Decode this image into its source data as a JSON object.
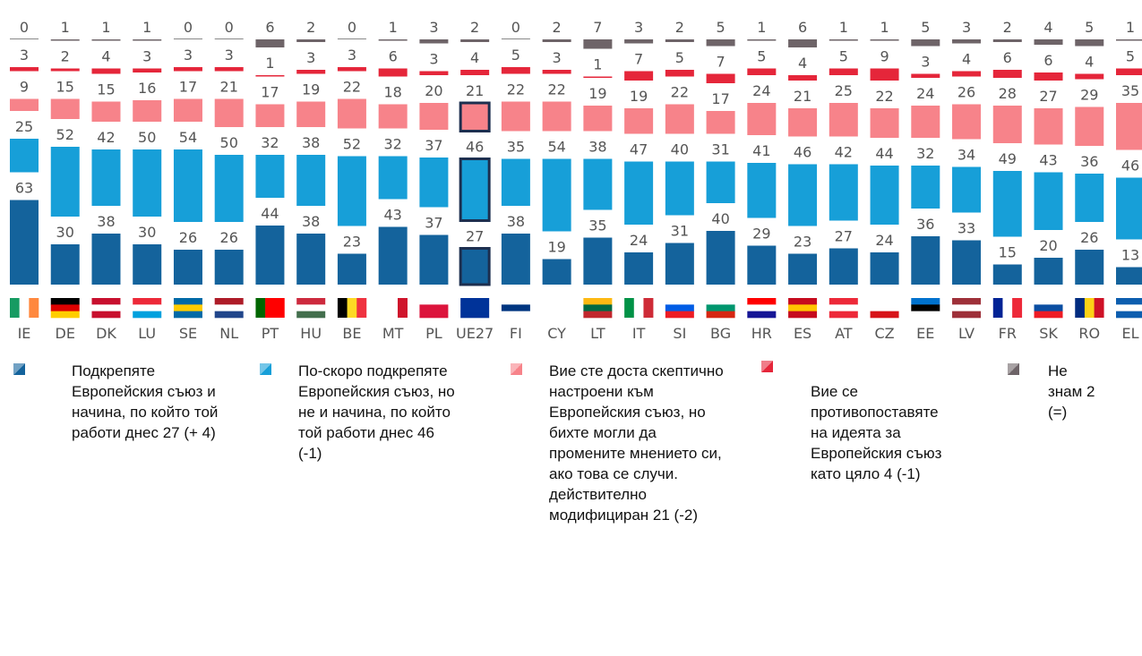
{
  "chart_data": {
    "type": "stacked-bar",
    "categories": [
      "IE",
      "DE",
      "DK",
      "LU",
      "SE",
      "NL",
      "PT",
      "HU",
      "BE",
      "MT",
      "PL",
      "UE27",
      "FI",
      "CY",
      "LT",
      "IT",
      "SI",
      "BG",
      "HR",
      "ES",
      "AT",
      "CZ",
      "EE",
      "LV",
      "FR",
      "SK",
      "RO",
      "EL"
    ],
    "series": [
      {
        "name": "Подкрепяте Европейския съюз и начина, по който той работи днес 27 (+ 4)",
        "color": "#14639c",
        "values": [
          63,
          30,
          38,
          30,
          26,
          26,
          44,
          38,
          23,
          43,
          37,
          27,
          38,
          19,
          35,
          24,
          31,
          40,
          29,
          23,
          27,
          24,
          36,
          33,
          15,
          20,
          26,
          13
        ]
      },
      {
        "name": "По-скоро подкрепяте Европейския съюз, но не и начина, по който той работи днес 46 (-1)",
        "color": "#179fd8",
        "values": [
          25,
          52,
          42,
          50,
          54,
          50,
          32,
          38,
          52,
          32,
          37,
          46,
          35,
          54,
          38,
          47,
          40,
          31,
          41,
          46,
          42,
          44,
          32,
          34,
          49,
          43,
          36,
          46
        ]
      },
      {
        "name": "Вие сте доста скептично настроени към Европейския съюз, но бихте могли да промените мнението си, ако това се случи. действително модифициран 21 (-2)",
        "color": "#f7838a",
        "values": [
          9,
          15,
          15,
          16,
          17,
          21,
          17,
          19,
          22,
          18,
          20,
          21,
          22,
          22,
          19,
          19,
          22,
          17,
          24,
          21,
          25,
          22,
          24,
          26,
          28,
          27,
          29,
          35
        ]
      },
      {
        "name": "Вие се противопоставяте на идеята за Европейския съюз като цяло 4 (-1)",
        "color": "#e5263a",
        "values": [
          3,
          2,
          4,
          3,
          3,
          3,
          1,
          3,
          3,
          6,
          3,
          4,
          5,
          3,
          1,
          7,
          5,
          7,
          5,
          4,
          5,
          9,
          3,
          4,
          6,
          6,
          4,
          5
        ]
      },
      {
        "name": "Не знам 2 (=)",
        "color": "#6e6468",
        "values": [
          0,
          1,
          1,
          1,
          0,
          0,
          6,
          2,
          0,
          1,
          3,
          2,
          0,
          2,
          7,
          3,
          2,
          5,
          1,
          6,
          1,
          1,
          5,
          3,
          2,
          4,
          5,
          1
        ]
      }
    ]
  }
}
